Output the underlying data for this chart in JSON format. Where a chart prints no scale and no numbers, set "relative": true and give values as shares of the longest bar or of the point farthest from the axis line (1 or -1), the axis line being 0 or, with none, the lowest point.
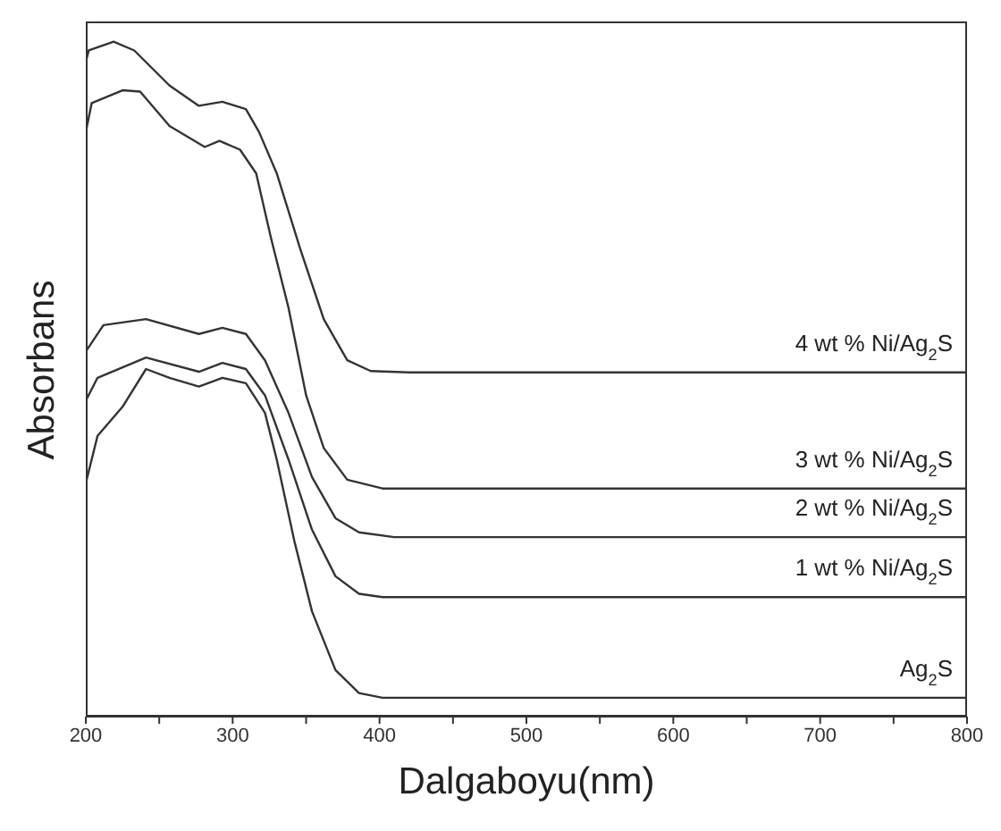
{
  "chart_data": {
    "type": "line",
    "relative": true,
    "xlabel": "Dalgaboyu(nm)",
    "ylabel": "Absorbans",
    "xlim": [
      200,
      800
    ],
    "xticks": [
      200,
      {
        "value": 250,
        "label": null
      },
      300,
      {
        "value": 350,
        "label": null
      },
      400,
      {
        "value": 450,
        "label": null
      },
      500,
      {
        "value": 550,
        "label": null
      },
      600,
      {
        "value": 650,
        "label": null
      },
      700,
      {
        "value": 750,
        "label": null
      },
      800
    ],
    "marker": "none",
    "line_style": "solid",
    "series": [
      {
        "name": "4 wt % Ni/Ag$_{2}$S",
        "color": "#333333",
        "x": [
          200,
          202,
          219,
          233,
          257,
          277,
          293,
          309,
          318,
          330,
          346,
          362,
          378,
          394,
          420,
          800
        ],
        "values": [
          0.97,
          0.987,
          1.0,
          0.987,
          0.935,
          0.905,
          0.911,
          0.9,
          0.866,
          0.805,
          0.693,
          0.589,
          0.528,
          0.512,
          0.51,
          0.51
        ]
      },
      {
        "name": "3 wt % Ni/Ag$_{2}$S",
        "color": "#333333",
        "x": [
          200,
          204,
          225,
          237,
          257,
          281,
          291,
          305,
          316,
          326,
          338,
          350,
          362,
          378,
          402,
          800
        ],
        "values": [
          0.866,
          0.909,
          0.928,
          0.926,
          0.875,
          0.844,
          0.853,
          0.84,
          0.805,
          0.71,
          0.606,
          0.476,
          0.398,
          0.351,
          0.338,
          0.338
        ]
      },
      {
        "name": "2 wt % Ni/Ag$_{2}$S",
        "color": "#333333",
        "x": [
          200,
          212,
          241,
          277,
          293,
          309,
          322,
          338,
          354,
          370,
          386,
          410,
          800
        ],
        "values": [
          0.541,
          0.58,
          0.589,
          0.567,
          0.576,
          0.567,
          0.528,
          0.45,
          0.355,
          0.294,
          0.273,
          0.266,
          0.266
        ]
      },
      {
        "name": "1 wt % Ni/Ag$_{2}$S",
        "color": "#333333",
        "x": [
          200,
          208,
          241,
          277,
          293,
          309,
          322,
          338,
          354,
          370,
          386,
          402,
          800
        ],
        "values": [
          0.468,
          0.502,
          0.532,
          0.511,
          0.524,
          0.515,
          0.476,
          0.381,
          0.277,
          0.208,
          0.182,
          0.177,
          0.177
        ]
      },
      {
        "name": "Ag$_{2}$S",
        "color": "#333333",
        "x": [
          200,
          208,
          225,
          241,
          257,
          277,
          293,
          309,
          322,
          330,
          342,
          354,
          370,
          386,
          402,
          800
        ],
        "values": [
          0.346,
          0.416,
          0.459,
          0.515,
          0.502,
          0.489,
          0.502,
          0.494,
          0.45,
          0.381,
          0.26,
          0.156,
          0.069,
          0.035,
          0.028,
          0.028
        ]
      }
    ]
  }
}
